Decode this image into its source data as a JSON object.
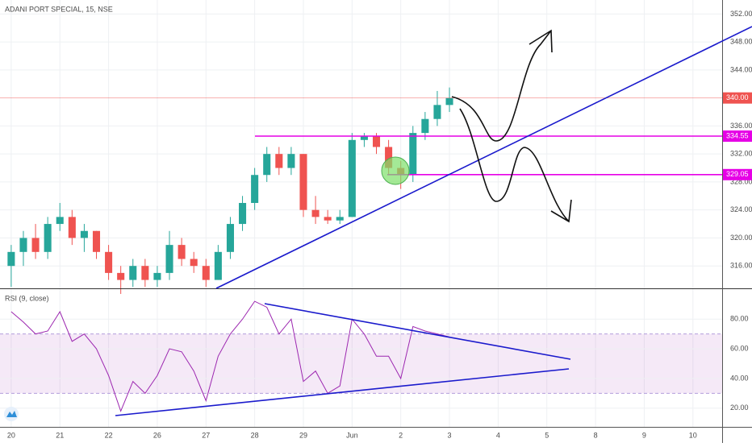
{
  "chart_data": [
    {
      "type": "candlestick",
      "title": "ADANI PORT SPECIAL, 15, NSE",
      "x": [
        0,
        0.25,
        0.5,
        0.75,
        1,
        1.25,
        1.5,
        1.75,
        2,
        2.25,
        2.5,
        2.75,
        3,
        3.25,
        3.5,
        3.75,
        4,
        4.25,
        4.5,
        4.75,
        5,
        5.25,
        5.5,
        5.75,
        6,
        6.25,
        6.5,
        6.75,
        7,
        7.25,
        7.5,
        7.75,
        8,
        8.25,
        8.5,
        8.75,
        9
      ],
      "open": [
        316,
        318,
        320,
        318,
        322,
        323,
        320,
        321,
        318,
        315,
        314,
        316,
        314,
        315,
        319,
        317,
        316,
        314,
        318,
        322,
        325,
        329,
        332,
        330,
        332,
        324,
        323,
        322.5,
        323,
        334,
        334.5,
        333,
        330,
        329,
        335,
        337,
        339
      ],
      "high": [
        319,
        321,
        322,
        323,
        325,
        324,
        322,
        321,
        319,
        316,
        317,
        317,
        316,
        321,
        320,
        318,
        317,
        319,
        323,
        326,
        330,
        333,
        333,
        333,
        332,
        326,
        324,
        324,
        335,
        335,
        335,
        334,
        331,
        336,
        338,
        341,
        341.5
      ],
      "low": [
        313,
        316,
        317,
        317,
        321,
        319,
        318,
        317,
        314,
        312,
        313,
        313,
        313,
        314,
        316,
        315,
        313,
        314,
        317,
        321,
        324,
        328,
        329,
        329,
        323,
        322,
        322,
        322,
        323,
        333,
        332,
        329,
        327,
        328,
        334,
        336,
        338
      ],
      "close": [
        318,
        320,
        318,
        322,
        323,
        320,
        321,
        318,
        315,
        314,
        316,
        314,
        315,
        319,
        317,
        316,
        314,
        318,
        322,
        325,
        329,
        332,
        330,
        332,
        324,
        323,
        322.5,
        323,
        334,
        334.5,
        333,
        330,
        329,
        335,
        337,
        339,
        340
      ],
      "up_color": "#26a69a",
      "down_color": "#ef5350",
      "xlim": [
        -0.23,
        14.6
      ],
      "ylim": [
        312.8,
        354
      ],
      "yticks": [
        {
          "value": 316,
          "label": "316.00"
        },
        {
          "value": 320,
          "label": "320.00"
        },
        {
          "value": 324,
          "label": "324.00"
        },
        {
          "value": 328,
          "label": "328.00"
        },
        {
          "value": 332,
          "label": "332.00"
        },
        {
          "value": 336,
          "label": "336.00"
        },
        {
          "value": 344,
          "label": "344.00"
        },
        {
          "value": 348,
          "label": "348.00"
        },
        {
          "value": 352,
          "label": "352.00"
        }
      ],
      "last_price": {
        "value": 340,
        "label": "340.00",
        "color": "#ef5350"
      },
      "levels": [
        {
          "value": 334.55,
          "label": "334.55",
          "color": "#e600e6"
        },
        {
          "value": 329.05,
          "label": "329.05",
          "color": "#e600e6"
        }
      ],
      "grid": true
    },
    {
      "type": "line",
      "title": "RSI (9, close)",
      "x": [
        0,
        0.25,
        0.5,
        0.75,
        1,
        1.25,
        1.5,
        1.75,
        2,
        2.25,
        2.5,
        2.75,
        3,
        3.25,
        3.5,
        3.75,
        4,
        4.25,
        4.5,
        4.75,
        5,
        5.25,
        5.5,
        5.75,
        6,
        6.25,
        6.5,
        6.75,
        7,
        7.25,
        7.5,
        7.75,
        8,
        8.25,
        8.5,
        8.75,
        9
      ],
      "values": [
        85,
        78,
        70,
        72,
        85,
        65,
        70,
        60,
        42,
        18,
        38,
        30,
        42,
        60,
        58,
        45,
        25,
        55,
        70,
        80,
        92,
        88,
        70,
        80,
        38,
        45,
        30,
        35,
        80,
        70,
        55,
        55,
        40,
        75,
        72,
        70,
        68
      ],
      "color": "#9c27b0",
      "band": [
        30,
        70
      ],
      "band_color": "#9c27b0",
      "xlim": [
        -0.23,
        14.6
      ],
      "ylim": [
        7.4,
        100.2
      ],
      "yticks": [
        {
          "value": 20,
          "label": "20.00"
        },
        {
          "value": 40,
          "label": "40.00"
        },
        {
          "value": 60,
          "label": "60.00"
        },
        {
          "value": 80,
          "label": "80.00"
        }
      ],
      "xticks": [
        {
          "value": 0,
          "label": "20"
        },
        {
          "value": 1,
          "label": "21"
        },
        {
          "value": 2,
          "label": "22"
        },
        {
          "value": 3,
          "label": "26"
        },
        {
          "value": 4,
          "label": "27"
        },
        {
          "value": 5,
          "label": "28"
        },
        {
          "value": 6,
          "label": "29"
        },
        {
          "value": 7,
          "label": "Jun"
        },
        {
          "value": 8,
          "label": "2"
        },
        {
          "value": 9,
          "label": "3"
        },
        {
          "value": 10,
          "label": "4"
        },
        {
          "value": 11,
          "label": "5"
        },
        {
          "value": 12,
          "label": "8"
        },
        {
          "value": 13,
          "label": "9"
        },
        {
          "value": 14,
          "label": "10"
        }
      ],
      "grid": true
    }
  ]
}
